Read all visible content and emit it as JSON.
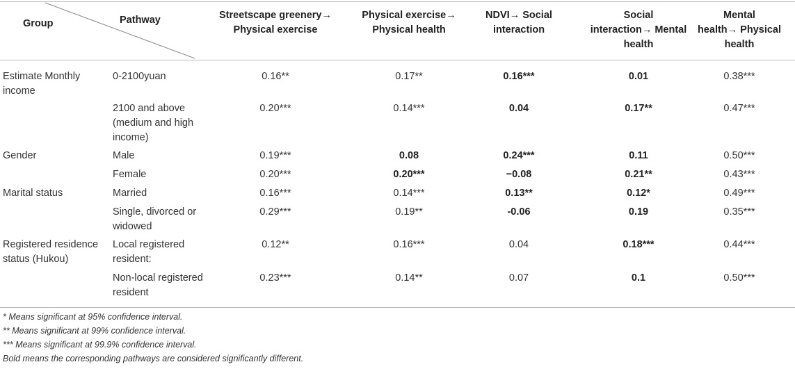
{
  "table": {
    "headers": {
      "group": "Group",
      "pathway": "Pathway",
      "columns": [
        [
          "Streetscape greenery→",
          "Physical exercise"
        ],
        [
          "Physical exercise→",
          "Physical health"
        ],
        [
          "NDVI→ Social",
          "interaction"
        ],
        [
          "Social",
          "interaction→ Mental",
          "health"
        ],
        [
          "Mental",
          "health→ Physical",
          "health"
        ]
      ]
    },
    "rows": [
      {
        "group": [
          "Estimate Monthly",
          "income"
        ],
        "pathway": [
          "0-2100yuan"
        ],
        "values": [
          "0.16**",
          "0.17**",
          "0.16***",
          "0.01",
          "0.38***"
        ],
        "bold": [
          false,
          false,
          true,
          true,
          false
        ]
      },
      {
        "group": [],
        "pathway": [
          "2100 and above",
          "(medium and high",
          "income)"
        ],
        "values": [
          "0.20***",
          "0.14***",
          "0.04",
          "0.17**",
          "0.47***"
        ],
        "bold": [
          false,
          false,
          true,
          true,
          false
        ]
      },
      {
        "group": [
          "Gender"
        ],
        "pathway": [
          "Male"
        ],
        "values": [
          "0.19***",
          "0.08",
          "0.24***",
          "0.11",
          "0.50***"
        ],
        "bold": [
          false,
          true,
          true,
          true,
          false
        ]
      },
      {
        "group": [],
        "pathway": [
          "Female"
        ],
        "values": [
          "0.20***",
          "0.20***",
          "−0.08",
          "0.21**",
          "0.43***"
        ],
        "bold": [
          false,
          true,
          true,
          true,
          false
        ]
      },
      {
        "group": [
          "Marital status"
        ],
        "pathway": [
          "Married"
        ],
        "values": [
          "0.16***",
          "0.14***",
          "0.13**",
          "0.12*",
          "0.49***"
        ],
        "bold": [
          false,
          false,
          true,
          true,
          false
        ]
      },
      {
        "group": [],
        "pathway": [
          "Single, divorced or",
          "widowed"
        ],
        "values": [
          "0.29***",
          "0.19**",
          "-0.06",
          "0.19",
          "0.35***"
        ],
        "bold": [
          false,
          false,
          true,
          true,
          false
        ]
      },
      {
        "group": [
          "Registered residence",
          "status (Hukou)"
        ],
        "pathway": [
          "Local registered",
          "resident:"
        ],
        "values": [
          "0.12**",
          "0.16***",
          "0.04",
          "0.18***",
          "0.44***"
        ],
        "bold": [
          false,
          false,
          false,
          true,
          false
        ]
      },
      {
        "group": [],
        "pathway": [
          "Non-local registered",
          "resident"
        ],
        "values": [
          "0.23***",
          "0.14**",
          "0.07",
          "0.1",
          "0.50***"
        ],
        "bold": [
          false,
          false,
          false,
          true,
          false
        ]
      }
    ]
  },
  "footnotes": [
    "* Means significant at 95% confidence interval.",
    "** Means significant at 99% confidence interval.",
    "*** Means significant at 99.9% confidence interval.",
    "Bold means the corresponding pathways are considered significantly different."
  ]
}
